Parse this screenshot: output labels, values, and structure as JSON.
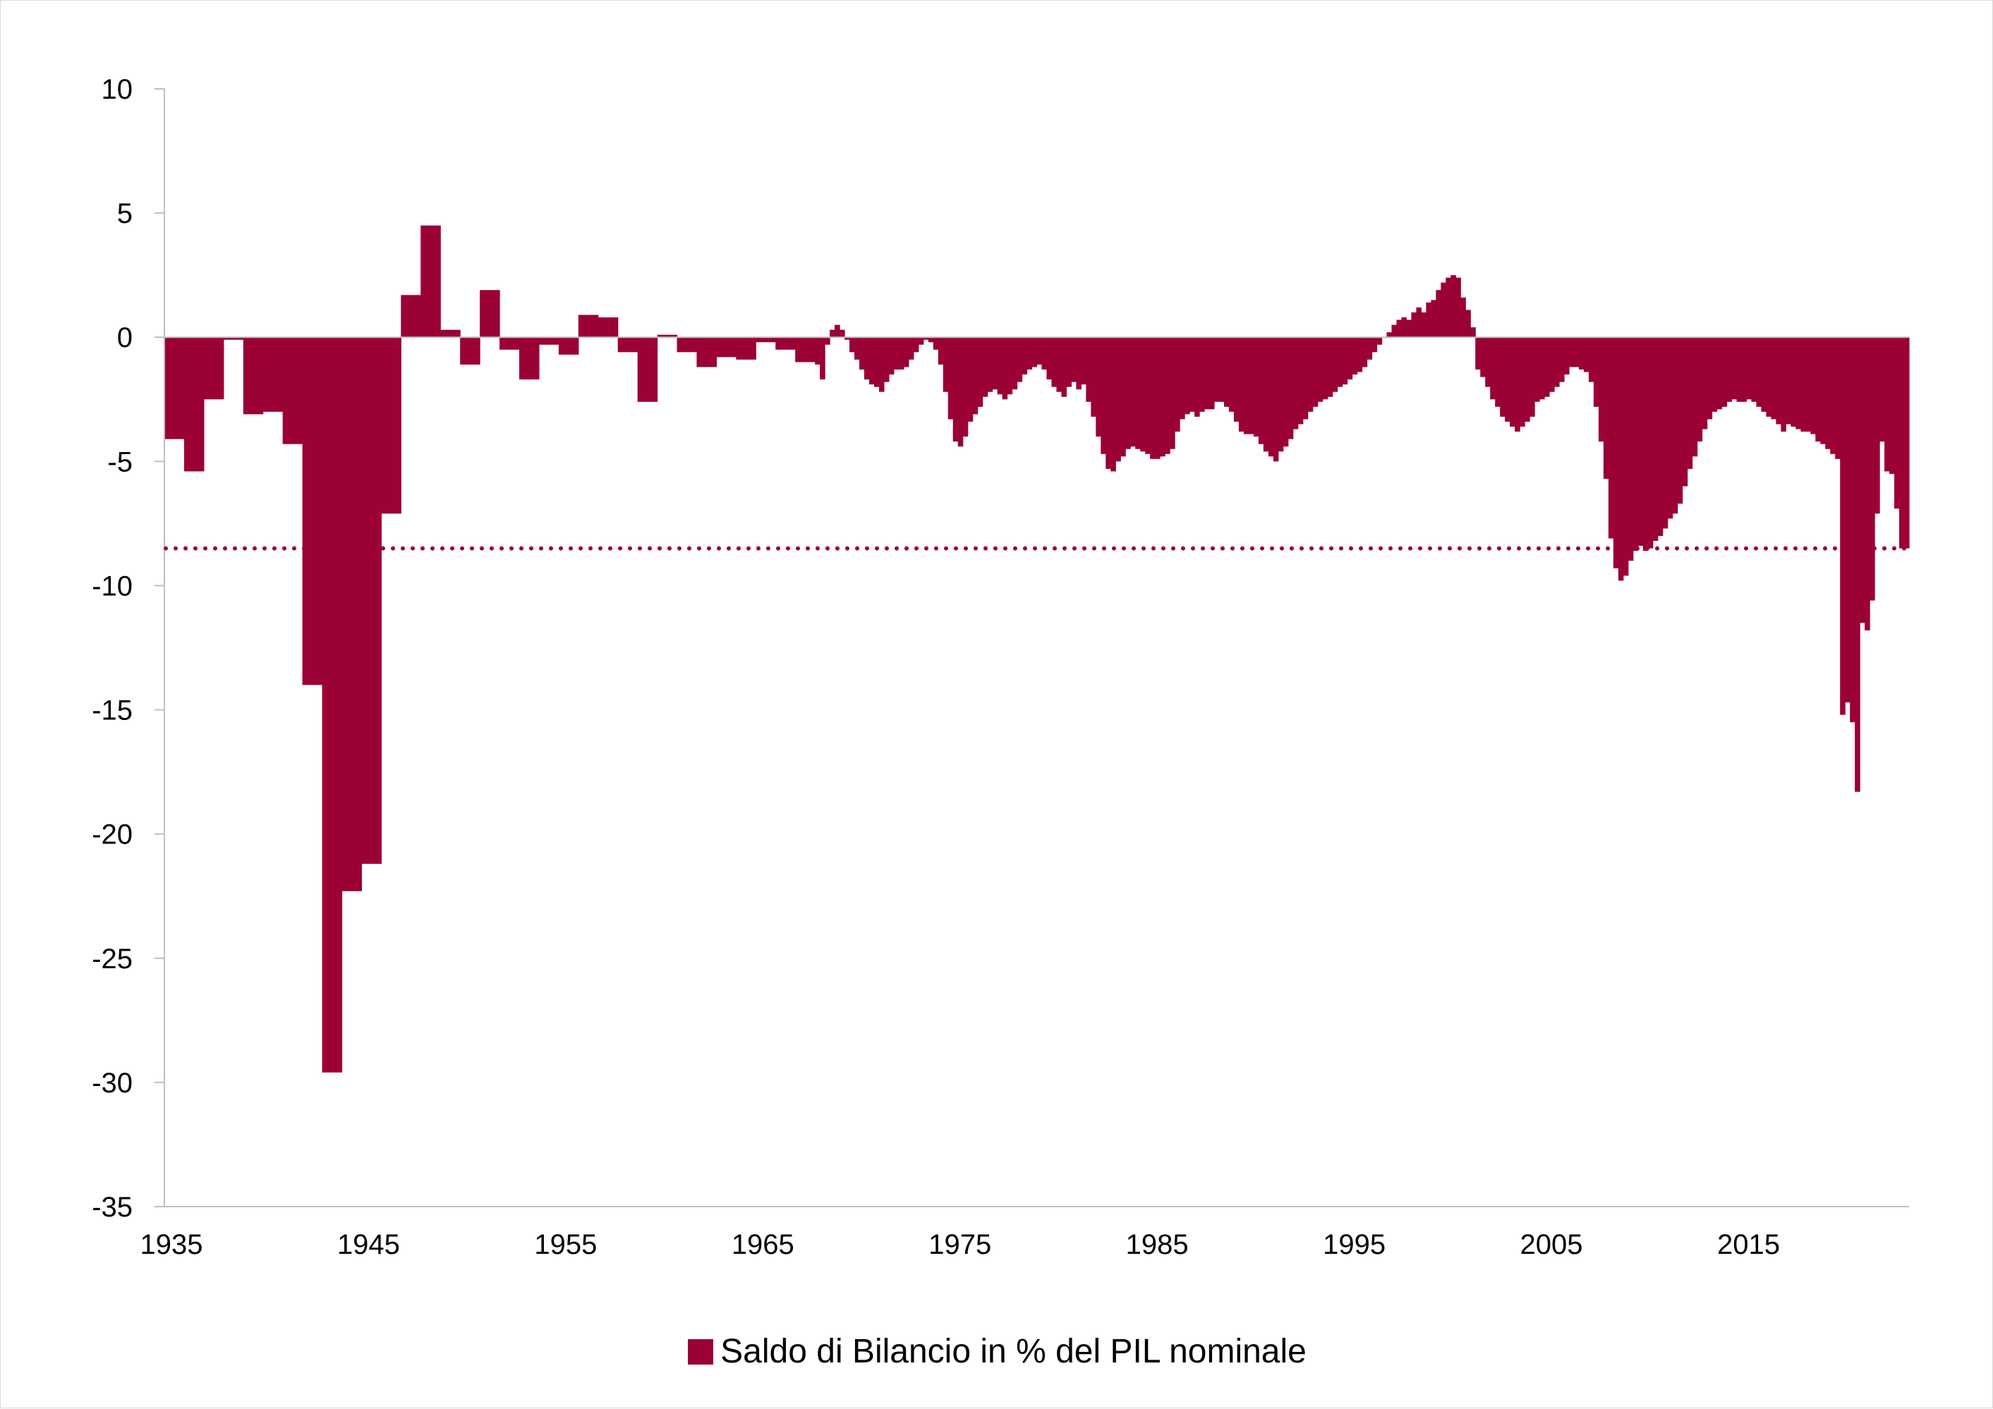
{
  "chart_data": {
    "type": "bar",
    "title": "",
    "xlabel": "",
    "ylabel": "",
    "ylim": [
      -35,
      10
    ],
    "xlim": [
      1935,
      2023.5
    ],
    "y_ticks": [
      10,
      5,
      0,
      -5,
      -10,
      -15,
      -20,
      -25,
      -30,
      -35
    ],
    "x_ticks": [
      1935,
      1945,
      1955,
      1965,
      1975,
      1985,
      1995,
      2005,
      2015
    ],
    "grid": false,
    "legend_position": "bottom-center",
    "colors": {
      "bar": "#9b0036",
      "reference_line": "#9b0036",
      "axis": "#bfbfbf"
    },
    "reference_line": {
      "value": -8.5,
      "style": "dotted"
    },
    "series": [
      {
        "name": "Saldo di Bilancio in % del PIL nominale",
        "points": [
          [
            1935,
            -4.1
          ],
          [
            1936,
            -5.4
          ],
          [
            1937,
            -2.5
          ],
          [
            1938,
            -0.1
          ],
          [
            1939,
            -3.1
          ],
          [
            1940,
            -3.0
          ],
          [
            1941,
            -4.3
          ],
          [
            1942,
            -14.0
          ],
          [
            1943,
            -29.6
          ],
          [
            1944,
            -22.3
          ],
          [
            1945,
            -21.2
          ],
          [
            1946,
            -7.1
          ],
          [
            1947,
            1.7
          ],
          [
            1948,
            4.5
          ],
          [
            1949,
            0.3
          ],
          [
            1950,
            -1.1
          ],
          [
            1951,
            1.9
          ],
          [
            1952,
            -0.5
          ],
          [
            1953,
            -1.7
          ],
          [
            1954,
            -0.3
          ],
          [
            1955,
            -0.7
          ],
          [
            1956,
            0.9
          ],
          [
            1957,
            0.8
          ],
          [
            1958,
            -0.6
          ],
          [
            1959,
            -2.6
          ],
          [
            1960,
            0.1
          ],
          [
            1961,
            -0.6
          ],
          [
            1962,
            -1.2
          ],
          [
            1963,
            -0.8
          ],
          [
            1964,
            -0.9
          ],
          [
            1965,
            -0.2
          ],
          [
            1966,
            -0.5
          ],
          [
            1967,
            -1.0
          ],
          [
            1968,
            -1.1
          ],
          [
            1968.25,
            -1.7
          ],
          [
            1968.5,
            -0.3
          ],
          [
            1968.75,
            0.3
          ],
          [
            1969,
            0.5
          ],
          [
            1969.25,
            0.3
          ],
          [
            1969.5,
            -0.1
          ],
          [
            1969.75,
            -0.6
          ],
          [
            1970,
            -0.9
          ],
          [
            1970.25,
            -1.3
          ],
          [
            1970.5,
            -1.7
          ],
          [
            1970.75,
            -1.9
          ],
          [
            1971,
            -2.0
          ],
          [
            1971.25,
            -2.2
          ],
          [
            1971.5,
            -1.8
          ],
          [
            1971.75,
            -1.5
          ],
          [
            1972,
            -1.3
          ],
          [
            1972.25,
            -1.3
          ],
          [
            1972.5,
            -1.2
          ],
          [
            1972.75,
            -0.9
          ],
          [
            1973,
            -0.6
          ],
          [
            1973.25,
            -0.3
          ],
          [
            1973.5,
            -0.1
          ],
          [
            1973.75,
            -0.2
          ],
          [
            1974,
            -0.5
          ],
          [
            1974.25,
            -1.1
          ],
          [
            1974.5,
            -2.2
          ],
          [
            1974.75,
            -3.3
          ],
          [
            1975,
            -4.2
          ],
          [
            1975.25,
            -4.4
          ],
          [
            1975.5,
            -4.0
          ],
          [
            1975.75,
            -3.4
          ],
          [
            1976,
            -3.1
          ],
          [
            1976.25,
            -2.8
          ],
          [
            1976.5,
            -2.4
          ],
          [
            1976.75,
            -2.2
          ],
          [
            1977,
            -2.1
          ],
          [
            1977.25,
            -2.3
          ],
          [
            1977.5,
            -2.5
          ],
          [
            1977.75,
            -2.3
          ],
          [
            1978,
            -2.1
          ],
          [
            1978.25,
            -1.8
          ],
          [
            1978.5,
            -1.5
          ],
          [
            1978.75,
            -1.3
          ],
          [
            1979,
            -1.2
          ],
          [
            1979.25,
            -1.1
          ],
          [
            1979.5,
            -1.3
          ],
          [
            1979.75,
            -1.7
          ],
          [
            1980,
            -2.0
          ],
          [
            1980.25,
            -2.2
          ],
          [
            1980.5,
            -2.4
          ],
          [
            1980.75,
            -2.0
          ],
          [
            1981,
            -1.8
          ],
          [
            1981.25,
            -2.1
          ],
          [
            1981.5,
            -1.9
          ],
          [
            1981.75,
            -2.6
          ],
          [
            1982,
            -3.2
          ],
          [
            1982.25,
            -4.0
          ],
          [
            1982.5,
            -4.7
          ],
          [
            1982.75,
            -5.3
          ],
          [
            1983,
            -5.4
          ],
          [
            1983.25,
            -5.0
          ],
          [
            1983.5,
            -4.8
          ],
          [
            1983.75,
            -4.5
          ],
          [
            1984,
            -4.4
          ],
          [
            1984.25,
            -4.5
          ],
          [
            1984.5,
            -4.6
          ],
          [
            1984.75,
            -4.7
          ],
          [
            1985,
            -4.9
          ],
          [
            1985.25,
            -4.9
          ],
          [
            1985.5,
            -4.8
          ],
          [
            1985.75,
            -4.7
          ],
          [
            1986,
            -4.5
          ],
          [
            1986.25,
            -3.8
          ],
          [
            1986.5,
            -3.3
          ],
          [
            1986.75,
            -3.1
          ],
          [
            1987,
            -3.0
          ],
          [
            1987.25,
            -3.2
          ],
          [
            1987.5,
            -3.0
          ],
          [
            1987.75,
            -2.9
          ],
          [
            1988,
            -2.9
          ],
          [
            1988.25,
            -2.6
          ],
          [
            1988.5,
            -2.6
          ],
          [
            1988.75,
            -2.8
          ],
          [
            1989,
            -3.0
          ],
          [
            1989.25,
            -3.4
          ],
          [
            1989.5,
            -3.8
          ],
          [
            1989.75,
            -3.9
          ],
          [
            1990,
            -3.9
          ],
          [
            1990.25,
            -4.0
          ],
          [
            1990.5,
            -4.3
          ],
          [
            1990.75,
            -4.6
          ],
          [
            1991,
            -4.8
          ],
          [
            1991.25,
            -5.0
          ],
          [
            1991.5,
            -4.6
          ],
          [
            1991.75,
            -4.4
          ],
          [
            1992,
            -4.1
          ],
          [
            1992.25,
            -3.7
          ],
          [
            1992.5,
            -3.5
          ],
          [
            1992.75,
            -3.3
          ],
          [
            1993,
            -3.0
          ],
          [
            1993.25,
            -2.8
          ],
          [
            1993.5,
            -2.6
          ],
          [
            1993.75,
            -2.5
          ],
          [
            1994,
            -2.4
          ],
          [
            1994.25,
            -2.2
          ],
          [
            1994.5,
            -2.0
          ],
          [
            1994.75,
            -1.9
          ],
          [
            1995,
            -1.7
          ],
          [
            1995.25,
            -1.5
          ],
          [
            1995.5,
            -1.4
          ],
          [
            1995.75,
            -1.2
          ],
          [
            1996,
            -0.9
          ],
          [
            1996.25,
            -0.6
          ],
          [
            1996.5,
            -0.3
          ],
          [
            1996.75,
            0.0
          ],
          [
            1997,
            0.2
          ],
          [
            1997.25,
            0.5
          ],
          [
            1997.5,
            0.7
          ],
          [
            1997.75,
            0.8
          ],
          [
            1998,
            0.7
          ],
          [
            1998.25,
            1.0
          ],
          [
            1998.5,
            1.2
          ],
          [
            1998.75,
            1.0
          ],
          [
            1999,
            1.4
          ],
          [
            1999.25,
            1.5
          ],
          [
            1999.5,
            1.9
          ],
          [
            1999.75,
            2.2
          ],
          [
            2000,
            2.4
          ],
          [
            2000.25,
            2.5
          ],
          [
            2000.5,
            2.4
          ],
          [
            2000.75,
            1.6
          ],
          [
            2001,
            1.1
          ],
          [
            2001.25,
            0.4
          ],
          [
            2001.5,
            -1.3
          ],
          [
            2001.75,
            -1.6
          ],
          [
            2002,
            -2.0
          ],
          [
            2002.25,
            -2.5
          ],
          [
            2002.5,
            -2.8
          ],
          [
            2002.75,
            -3.2
          ],
          [
            2003,
            -3.4
          ],
          [
            2003.25,
            -3.6
          ],
          [
            2003.5,
            -3.8
          ],
          [
            2003.75,
            -3.6
          ],
          [
            2004,
            -3.4
          ],
          [
            2004.25,
            -3.2
          ],
          [
            2004.5,
            -2.6
          ],
          [
            2004.75,
            -2.5
          ],
          [
            2005,
            -2.4
          ],
          [
            2005.25,
            -2.2
          ],
          [
            2005.5,
            -2.0
          ],
          [
            2005.75,
            -1.8
          ],
          [
            2006,
            -1.5
          ],
          [
            2006.25,
            -1.2
          ],
          [
            2006.5,
            -1.2
          ],
          [
            2006.75,
            -1.3
          ],
          [
            2007,
            -1.4
          ],
          [
            2007.25,
            -1.8
          ],
          [
            2007.5,
            -2.8
          ],
          [
            2007.75,
            -4.2
          ],
          [
            2008,
            -5.7
          ],
          [
            2008.25,
            -8.1
          ],
          [
            2008.5,
            -9.3
          ],
          [
            2008.75,
            -9.8
          ],
          [
            2009,
            -9.6
          ],
          [
            2009.25,
            -9.0
          ],
          [
            2009.5,
            -8.6
          ],
          [
            2009.75,
            -8.4
          ],
          [
            2010,
            -8.6
          ],
          [
            2010.25,
            -8.5
          ],
          [
            2010.5,
            -8.2
          ],
          [
            2010.75,
            -8.0
          ],
          [
            2011,
            -7.7
          ],
          [
            2011.25,
            -7.3
          ],
          [
            2011.5,
            -7.1
          ],
          [
            2011.75,
            -6.7
          ],
          [
            2012,
            -6.0
          ],
          [
            2012.25,
            -5.3
          ],
          [
            2012.5,
            -4.8
          ],
          [
            2012.75,
            -4.2
          ],
          [
            2013,
            -3.7
          ],
          [
            2013.25,
            -3.3
          ],
          [
            2013.5,
            -3.0
          ],
          [
            2013.75,
            -2.9
          ],
          [
            2014,
            -2.8
          ],
          [
            2014.25,
            -2.6
          ],
          [
            2014.5,
            -2.5
          ],
          [
            2014.75,
            -2.6
          ],
          [
            2015,
            -2.6
          ],
          [
            2015.25,
            -2.5
          ],
          [
            2015.5,
            -2.6
          ],
          [
            2015.75,
            -2.8
          ],
          [
            2016,
            -3.0
          ],
          [
            2016.25,
            -3.2
          ],
          [
            2016.5,
            -3.3
          ],
          [
            2016.75,
            -3.5
          ],
          [
            2017,
            -3.8
          ],
          [
            2017.25,
            -3.5
          ],
          [
            2017.5,
            -3.6
          ],
          [
            2017.75,
            -3.7
          ],
          [
            2018,
            -3.8
          ],
          [
            2018.25,
            -3.8
          ],
          [
            2018.5,
            -3.9
          ],
          [
            2018.75,
            -4.2
          ],
          [
            2019,
            -4.3
          ],
          [
            2019.25,
            -4.5
          ],
          [
            2019.5,
            -4.7
          ],
          [
            2019.75,
            -4.9
          ],
          [
            2020,
            -15.2
          ],
          [
            2020.25,
            -14.7
          ],
          [
            2020.5,
            -15.5
          ],
          [
            2020.75,
            -18.3
          ],
          [
            2021,
            -11.5
          ],
          [
            2021.25,
            -11.8
          ],
          [
            2021.5,
            -10.6
          ],
          [
            2021.75,
            -7.1
          ],
          [
            2022,
            -4.2
          ],
          [
            2022.25,
            -5.4
          ],
          [
            2022.5,
            -5.5
          ],
          [
            2022.75,
            -6.9
          ],
          [
            2023,
            -8.5
          ]
        ]
      }
    ]
  }
}
